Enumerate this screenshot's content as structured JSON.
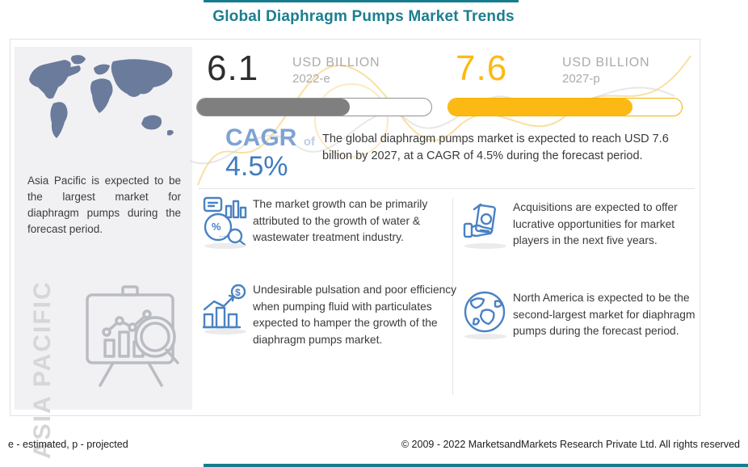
{
  "page": {
    "title": "Global Diaphragm Pumps Market Trends",
    "accent_teal": "#157d8d",
    "accent_yellow": "#fdb913",
    "accent_gray": "#7f7f7f",
    "accent_blue": "#4a82c3"
  },
  "left_panel": {
    "map_icon": "world-map-icon",
    "description": "Asia Pacific is expected to be the largest market for diaphragm pumps during the forecast period.",
    "watermark": "ASIA PACIFIC",
    "illustration_icon": "chart-board-magnifier-icon"
  },
  "stats": {
    "current": {
      "value": "6.1",
      "unit": "USD BILLION",
      "year": "2022-e",
      "fill_percent": 65,
      "bar_color": "#7f7f7f"
    },
    "projected": {
      "value": "7.6",
      "unit": "USD BILLION",
      "year": "2027-p",
      "fill_percent": 79,
      "bar_color": "#fdb913"
    },
    "cagr": {
      "label": "CAGR",
      "of": "of",
      "value": "4.5%"
    },
    "summary": "The global diaphragm pumps market is expected to reach USD 7.6 billion by 2027, at a CAGR of 4.5% during the forecast period."
  },
  "bullets": [
    {
      "icon": "market-analysis-icon",
      "text": "The market growth can be primarily attributed to the growth of water & wastewater treatment industry."
    },
    {
      "icon": "cash-hand-icon",
      "text": "Acquisitions are expected to offer lucrative opportunities for market players in the next five years."
    },
    {
      "icon": "growth-bars-dollar-icon",
      "text": "Undesirable pulsation and poor efficiency when pumping fluid with particulates expected to hamper the growth of the diaphragm pumps market."
    },
    {
      "icon": "globe-icon",
      "text": "North America is expected to be the second-largest market for diaphragm pumps during the forecast period."
    }
  ],
  "footer": {
    "legend": "e - estimated, p - projected",
    "copyright": "© 2009 - 2022 MarketsandMarkets Research Private Ltd. All rights reserved"
  }
}
